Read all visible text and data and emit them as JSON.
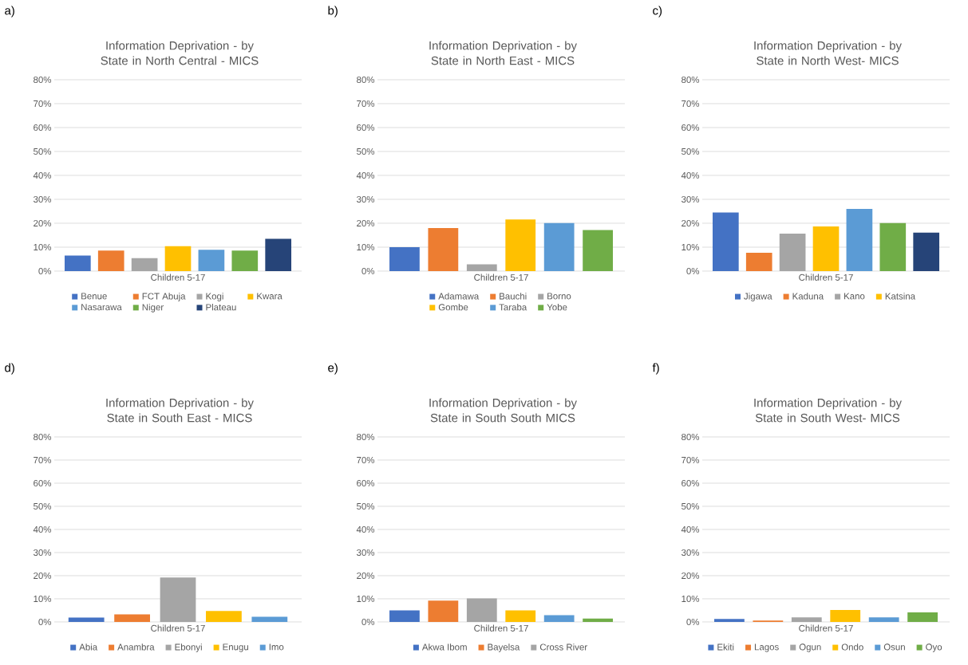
{
  "chart_data": [
    {
      "type": "bar",
      "title": "Information Deprivation -  by State in North Central - MICS",
      "annotations": [
        "a)"
      ],
      "categories": [
        "Children 5-17"
      ],
      "ylim": [
        0,
        80
      ],
      "yticks": [
        {
          "value": 0,
          "label": "0%"
        },
        {
          "value": 10,
          "label": "10%"
        },
        {
          "value": 20,
          "label": "20%"
        },
        {
          "value": 30,
          "label": "30%"
        },
        {
          "value": 40,
          "label": "40%"
        },
        {
          "value": 50,
          "label": "50%"
        },
        {
          "value": 60,
          "label": "60%"
        },
        {
          "value": 70,
          "label": "70%"
        },
        {
          "value": 80,
          "label": "80%"
        }
      ],
      "grid": "y",
      "legend": "bottom",
      "series": [
        {
          "name": "Benue",
          "color": "#4472c4",
          "values": [
            6.5
          ]
        },
        {
          "name": "FCT Abuja",
          "color": "#ed7d31",
          "values": [
            8.6
          ]
        },
        {
          "name": "Kogi",
          "color": "#a5a5a5",
          "values": [
            5.4
          ]
        },
        {
          "name": "Kwara",
          "color": "#ffc000",
          "values": [
            10.4
          ]
        },
        {
          "name": "Nasarawa",
          "color": "#5b9bd5",
          "values": [
            8.9
          ]
        },
        {
          "name": "Niger",
          "color": "#70ad47",
          "values": [
            8.6
          ]
        },
        {
          "name": "Plateau",
          "color": "#264478",
          "values": [
            13.5
          ]
        }
      ]
    },
    {
      "type": "bar",
      "title": "Information Deprivation -  by State in North East - MICS",
      "annotations": [
        "b)"
      ],
      "categories": [
        "Children 5-17"
      ],
      "ylim": [
        0,
        80
      ],
      "yticks": [
        {
          "value": 0,
          "label": "0%"
        },
        {
          "value": 10,
          "label": "10%"
        },
        {
          "value": 20,
          "label": "20%"
        },
        {
          "value": 30,
          "label": "30%"
        },
        {
          "value": 40,
          "label": "40%"
        },
        {
          "value": 50,
          "label": "50%"
        },
        {
          "value": 60,
          "label": "60%"
        },
        {
          "value": 70,
          "label": "70%"
        },
        {
          "value": 80,
          "label": "80%"
        }
      ],
      "grid": "y",
      "legend": "bottom",
      "series": [
        {
          "name": "Adamawa",
          "color": "#4472c4",
          "values": [
            10.0
          ]
        },
        {
          "name": "Bauchi",
          "color": "#ed7d31",
          "values": [
            18.0
          ]
        },
        {
          "name": "Borno",
          "color": "#a5a5a5",
          "values": [
            2.8
          ]
        },
        {
          "name": "Gombe",
          "color": "#ffc000",
          "values": [
            21.6
          ]
        },
        {
          "name": "Taraba",
          "color": "#5b9bd5",
          "values": [
            20.1
          ]
        },
        {
          "name": "Yobe",
          "color": "#70ad47",
          "values": [
            17.2
          ]
        }
      ]
    },
    {
      "type": "bar",
      "title": "Information Deprivation -  by State in North West- MICS",
      "annotations": [
        "c)"
      ],
      "categories": [
        "Children 5-17"
      ],
      "ylim": [
        0,
        80
      ],
      "yticks": [
        {
          "value": 0,
          "label": "0%"
        },
        {
          "value": 10,
          "label": "10%"
        },
        {
          "value": 20,
          "label": "20%"
        },
        {
          "value": 30,
          "label": "30%"
        },
        {
          "value": 40,
          "label": "40%"
        },
        {
          "value": 50,
          "label": "50%"
        },
        {
          "value": 60,
          "label": "60%"
        },
        {
          "value": 70,
          "label": "70%"
        },
        {
          "value": 80,
          "label": "80%"
        }
      ],
      "grid": "y",
      "legend": "bottom",
      "series": [
        {
          "name": "Jigawa",
          "color": "#4472c4",
          "values": [
            24.5
          ]
        },
        {
          "name": "Kaduna",
          "color": "#ed7d31",
          "values": [
            7.7
          ]
        },
        {
          "name": "Kano",
          "color": "#a5a5a5",
          "values": [
            15.7
          ]
        },
        {
          "name": "Katsina",
          "color": "#ffc000",
          "values": [
            18.7
          ]
        },
        {
          "color": "#5b9bd5",
          "values": [
            26.0
          ]
        },
        {
          "color": "#70ad47",
          "values": [
            20.1
          ]
        },
        {
          "color": "#264478",
          "values": [
            16.1
          ]
        }
      ]
    },
    {
      "type": "bar",
      "title": "Information Deprivation -  by State in South East - MICS",
      "annotations": [
        "d)"
      ],
      "categories": [
        "Children 5-17"
      ],
      "ylim": [
        0,
        80
      ],
      "yticks": [
        {
          "value": 0,
          "label": "0%"
        },
        {
          "value": 10,
          "label": "10%"
        },
        {
          "value": 20,
          "label": "20%"
        },
        {
          "value": 30,
          "label": "30%"
        },
        {
          "value": 40,
          "label": "40%"
        },
        {
          "value": 50,
          "label": "50%"
        },
        {
          "value": 60,
          "label": "60%"
        },
        {
          "value": 70,
          "label": "70%"
        },
        {
          "value": 80,
          "label": "80%"
        }
      ],
      "grid": "y",
      "legend": "bottom",
      "series": [
        {
          "name": "Abia",
          "color": "#4472c4",
          "values": [
            1.9
          ]
        },
        {
          "name": "Anambra",
          "color": "#ed7d31",
          "values": [
            3.3
          ]
        },
        {
          "name": "Ebonyi",
          "color": "#a5a5a5",
          "values": [
            19.2
          ]
        },
        {
          "name": "Enugu",
          "color": "#ffc000",
          "values": [
            4.7
          ]
        },
        {
          "name": "Imo",
          "color": "#5b9bd5",
          "values": [
            2.2
          ]
        }
      ]
    },
    {
      "type": "bar",
      "title": "Information Deprivation -  by State in South South MICS",
      "annotations": [
        "e)"
      ],
      "categories": [
        "Children 5-17"
      ],
      "ylim": [
        0,
        80
      ],
      "yticks": [
        {
          "value": 0,
          "label": "0%"
        },
        {
          "value": 10,
          "label": "10%"
        },
        {
          "value": 20,
          "label": "20%"
        },
        {
          "value": 30,
          "label": "30%"
        },
        {
          "value": 40,
          "label": "40%"
        },
        {
          "value": 50,
          "label": "50%"
        },
        {
          "value": 60,
          "label": "60%"
        },
        {
          "value": 70,
          "label": "70%"
        },
        {
          "value": 80,
          "label": "80%"
        }
      ],
      "grid": "y",
      "legend": "bottom",
      "series": [
        {
          "name": "Akwa Ibom",
          "color": "#4472c4",
          "values": [
            5.0
          ]
        },
        {
          "name": "Bayelsa",
          "color": "#ed7d31",
          "values": [
            9.2
          ]
        },
        {
          "name": "Cross River",
          "color": "#a5a5a5",
          "values": [
            10.2
          ]
        },
        {
          "color": "#ffc000",
          "values": [
            5.0
          ]
        },
        {
          "color": "#5b9bd5",
          "values": [
            2.9
          ]
        },
        {
          "color": "#70ad47",
          "values": [
            1.5
          ]
        }
      ]
    },
    {
      "type": "bar",
      "title": "Information Deprivation -  by State in South West- MICS",
      "annotations": [
        "f)"
      ],
      "categories": [
        "Children 5-17"
      ],
      "ylim": [
        0,
        80
      ],
      "yticks": [
        {
          "value": 0,
          "label": "0%"
        },
        {
          "value": 10,
          "label": "10%"
        },
        {
          "value": 20,
          "label": "20%"
        },
        {
          "value": 30,
          "label": "30%"
        },
        {
          "value": 40,
          "label": "40%"
        },
        {
          "value": 50,
          "label": "50%"
        },
        {
          "value": 60,
          "label": "60%"
        },
        {
          "value": 70,
          "label": "70%"
        },
        {
          "value": 80,
          "label": "80%"
        }
      ],
      "grid": "y",
      "legend": "bottom",
      "series": [
        {
          "name": "Ekiti",
          "color": "#4472c4",
          "values": [
            1.3
          ]
        },
        {
          "name": "Lagos",
          "color": "#ed7d31",
          "values": [
            0.6
          ]
        },
        {
          "name": "Ogun",
          "color": "#a5a5a5",
          "values": [
            2.0
          ]
        },
        {
          "name": "Ondo",
          "color": "#ffc000",
          "values": [
            5.2
          ]
        },
        {
          "name": "Osun",
          "color": "#5b9bd5",
          "values": [
            2.0
          ]
        },
        {
          "name": "Oyo",
          "color": "#70ad47",
          "values": [
            4.1
          ]
        }
      ]
    }
  ]
}
